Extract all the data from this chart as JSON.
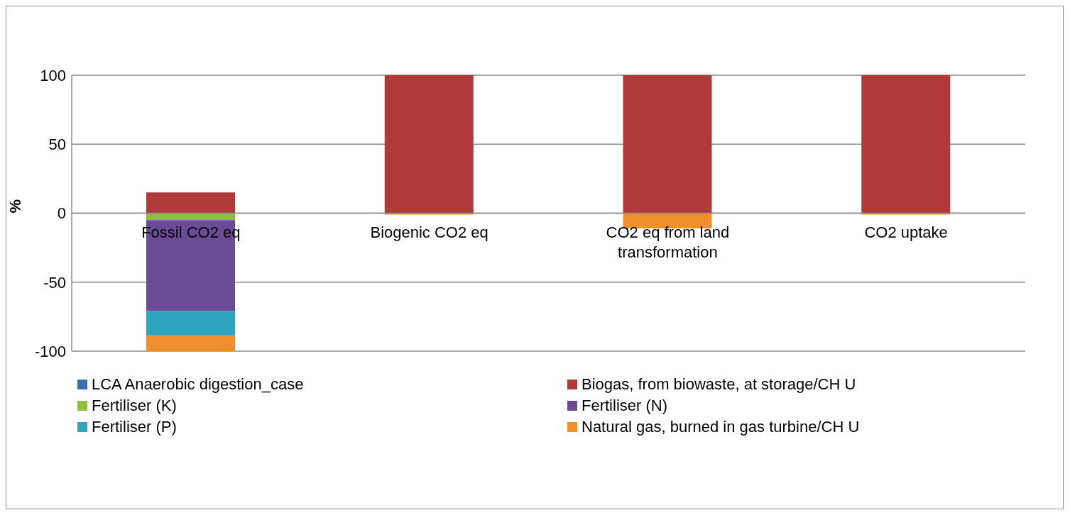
{
  "chart_data": {
    "type": "bar",
    "stacked": true,
    "ylabel": "%",
    "categories": [
      "Fossil CO2 eq",
      "Biogenic CO2 eq",
      "CO2 eq from land transformation",
      "CO2 uptake"
    ],
    "series": [
      {
        "name": "LCA Anaerobic digestion_case",
        "color": "#3a6fb0",
        "values": [
          0,
          0,
          0,
          0
        ]
      },
      {
        "name": "Biogas, from biowaste, at storage/CH U",
        "color": "#b03a3a",
        "values": [
          15,
          100,
          100,
          100
        ]
      },
      {
        "name": "Fertiliser (K)",
        "color": "#8fbe3c",
        "values": [
          -5,
          0,
          0,
          0
        ]
      },
      {
        "name": "Fertiliser (N)",
        "color": "#6b4a96",
        "values": [
          -66,
          0,
          0,
          0
        ]
      },
      {
        "name": "Fertiliser (P)",
        "color": "#31a5c0",
        "values": [
          -18,
          0,
          0,
          0
        ]
      },
      {
        "name": "Natural gas, burned in gas turbine/CH U",
        "color": "#f0902a",
        "values": [
          -11,
          -1,
          -11,
          -1
        ]
      }
    ],
    "ylim": [
      -100,
      100
    ],
    "yticks": [
      -100,
      -50,
      0,
      50,
      100
    ],
    "grid": "y",
    "legend": "bottom"
  }
}
